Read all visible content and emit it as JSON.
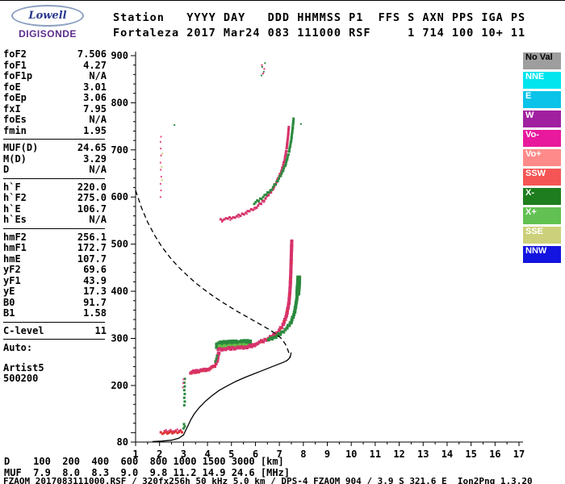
{
  "logo": {
    "line1": "Lowell",
    "line2": "DIGISONDE"
  },
  "header": {
    "line1": "Station   YYYY DAY   DDD HHMMSS P1  FFS S AXN PPS IGA PS",
    "line2": "Fortaleza 2017 Mar24 083 111000 RSF     1 714 100 10+ 11"
  },
  "parameters": {
    "groups": [
      {
        "rows": [
          [
            "foF2",
            "7.506"
          ],
          [
            "foF1",
            "4.27"
          ],
          [
            "foF1p",
            "N/A"
          ],
          [
            "foE",
            "3.01"
          ],
          [
            "foEp",
            "3.06"
          ],
          [
            "fxI",
            "7.95"
          ],
          [
            "foEs",
            "N/A"
          ],
          [
            "fmin",
            "1.95"
          ]
        ]
      },
      {
        "rows": [
          [
            "MUF(D)",
            "24.65"
          ],
          [
            "M(D)",
            "3.29"
          ],
          [
            "D",
            "N/A"
          ]
        ]
      },
      {
        "rows": [
          [
            "h`F",
            "220.0"
          ],
          [
            "h`F2",
            "275.0"
          ],
          [
            "h`E",
            "106.7"
          ],
          [
            "h`Es",
            "N/A"
          ]
        ]
      },
      {
        "rows": [
          [
            "hmF2",
            "256.1"
          ],
          [
            "hmF1",
            "172.7"
          ],
          [
            "hmE",
            "107.7"
          ],
          [
            "yF2",
            "69.6"
          ],
          [
            "yF1",
            "43.9"
          ],
          [
            "yE",
            "17.3"
          ],
          [
            "B0",
            "91.7"
          ],
          [
            "B1",
            "1.58"
          ]
        ]
      },
      {
        "rows": [
          [
            "C-level",
            "11"
          ]
        ]
      }
    ],
    "footer": [
      "Auto:",
      "Artist5",
      "500200"
    ]
  },
  "legend": {
    "items": [
      {
        "label": "No Val",
        "color": "#9e9e9e",
        "text_color": "#000000"
      },
      {
        "label": "NNE",
        "color": "#00e5ee"
      },
      {
        "label": "E",
        "color": "#0bc3e8"
      },
      {
        "label": "W",
        "color": "#a020a0"
      },
      {
        "label": "Vo-",
        "color": "#e8199c"
      },
      {
        "label": "Vo+",
        "color": "#ff8a8a"
      },
      {
        "label": "SSW",
        "color": "#f55555"
      },
      {
        "label": "X-",
        "color": "#1e7d1e"
      },
      {
        "label": "X+",
        "color": "#62c152"
      },
      {
        "label": "SSE",
        "color": "#cdd07a"
      },
      {
        "label": "NNW",
        "color": "#1414e0"
      }
    ]
  },
  "muf_table": {
    "line1": "D    100  200  400  600  800 1000 1500 3000 [km]",
    "line2": "MUF  7.9  8.0  8.3  9.0  9.8 11.2 14.9 24.6 [MHz]"
  },
  "status_line": "FZAOM_2017083111000.RSF / 320fx256h 50 kHz 5.0 km / DPS-4 FZAOM 904 / 3.9 S 321.6 E  Ion2Png 1.3.20",
  "chart_data": {
    "type": "scatter",
    "title": "",
    "xlabel": "",
    "ylabel": "",
    "xlim": [
      1,
      17
    ],
    "ylim": [
      80,
      900
    ],
    "x_ticks": [
      1,
      2,
      3,
      4,
      5,
      6,
      7,
      8,
      9,
      10,
      11,
      12,
      13,
      14,
      15,
      16,
      17
    ],
    "y_ticks": [
      80,
      200,
      300,
      400,
      500,
      600,
      700,
      800,
      900
    ],
    "grid": false,
    "legend_position": "right",
    "series": [
      {
        "name": "e-trace-red",
        "color": "#e03131",
        "size": 3,
        "band": true,
        "points": [
          [
            2.05,
            99
          ],
          [
            2.4,
            100
          ],
          [
            2.75,
            101
          ],
          [
            3.0,
            103
          ]
        ]
      },
      {
        "name": "e-trace-pink",
        "color": "#d6336c",
        "size": 2,
        "band": true,
        "points": [
          [
            2.2,
            104
          ],
          [
            2.6,
            105
          ],
          [
            2.95,
            106
          ]
        ]
      },
      {
        "name": "e-trace-green-tip",
        "color": "#2b8a3e",
        "size": 3,
        "band": false,
        "points": [
          [
            3.0,
            109
          ],
          [
            3.05,
            113
          ],
          [
            3.02,
            118
          ]
        ]
      },
      {
        "name": "es-green-column",
        "color": "#2b8a3e",
        "size": 3,
        "band": false,
        "points": [
          [
            3.03,
            158
          ],
          [
            3.05,
            166
          ],
          [
            3.03,
            174
          ],
          [
            3.05,
            182
          ],
          [
            3.03,
            190
          ],
          [
            3.05,
            198
          ],
          [
            3.03,
            206
          ],
          [
            3.05,
            214
          ]
        ]
      },
      {
        "name": "es-pink-dots",
        "color": "#e64980",
        "size": 2,
        "band": false,
        "points": [
          [
            2.97,
            196
          ],
          [
            2.99,
            205
          ],
          [
            3.0,
            213
          ]
        ]
      },
      {
        "name": "f1-trace-pink",
        "color": "#d6336c",
        "size": 4,
        "band": true,
        "points": [
          [
            3.3,
            228
          ],
          [
            3.55,
            230
          ],
          [
            3.8,
            232
          ],
          [
            4.05,
            235
          ],
          [
            4.25,
            239
          ],
          [
            4.35,
            246
          ],
          [
            4.42,
            256
          ],
          [
            4.46,
            266
          ],
          [
            4.5,
            274
          ]
        ]
      },
      {
        "name": "f1-trace-red-speckle",
        "color": "#e03131",
        "size": 2,
        "band": false,
        "points": [
          [
            3.35,
            225
          ],
          [
            3.5,
            227
          ],
          [
            3.65,
            228
          ],
          [
            3.8,
            230
          ],
          [
            4.0,
            232
          ],
          [
            4.15,
            236
          ],
          [
            4.3,
            241
          ]
        ]
      },
      {
        "name": "f1-green-dots",
        "color": "#2b8a3e",
        "size": 3,
        "band": false,
        "points": [
          [
            4.33,
            251
          ],
          [
            4.37,
            257
          ],
          [
            4.4,
            263
          ]
        ]
      },
      {
        "name": "f-band-green",
        "color": "#2b8a3e",
        "size": 8,
        "band": true,
        "points": [
          [
            4.45,
            286
          ],
          [
            4.75,
            288
          ],
          [
            5.05,
            289
          ],
          [
            5.35,
            289
          ],
          [
            5.6,
            290
          ],
          [
            5.78,
            291
          ]
        ]
      },
      {
        "name": "f-band-green-light",
        "color": "#69bd45",
        "size": 4,
        "band": true,
        "points": [
          [
            4.5,
            282
          ],
          [
            4.85,
            283
          ],
          [
            5.2,
            284
          ],
          [
            5.5,
            285
          ],
          [
            5.7,
            286
          ]
        ]
      },
      {
        "name": "f-band-pink",
        "color": "#d6336c",
        "size": 4,
        "band": true,
        "points": [
          [
            4.45,
            276
          ],
          [
            4.75,
            278
          ],
          [
            5.05,
            279
          ],
          [
            5.35,
            280
          ],
          [
            5.65,
            282
          ],
          [
            5.9,
            285
          ],
          [
            6.1,
            289
          ]
        ]
      },
      {
        "name": "f2-rise-pink",
        "color": "#d6336c",
        "size": 4,
        "band": true,
        "points": [
          [
            6.1,
            291
          ],
          [
            6.4,
            296
          ],
          [
            6.7,
            304
          ],
          [
            6.95,
            314
          ],
          [
            7.15,
            328
          ],
          [
            7.3,
            349
          ],
          [
            7.4,
            376
          ],
          [
            7.45,
            407
          ],
          [
            7.48,
            442
          ],
          [
            7.5,
            478
          ],
          [
            7.52,
            508
          ]
        ]
      },
      {
        "name": "f2-rise-red-speckle",
        "color": "#e03131",
        "size": 2,
        "band": false,
        "points": [
          [
            6.25,
            293
          ],
          [
            6.55,
            299
          ],
          [
            6.85,
            309
          ],
          [
            7.05,
            321
          ],
          [
            7.2,
            337
          ],
          [
            7.32,
            358
          ],
          [
            7.42,
            392
          ],
          [
            7.46,
            425
          ],
          [
            7.49,
            460
          ]
        ]
      },
      {
        "name": "f2-rise-green",
        "color": "#2b8a3e",
        "size": 4,
        "band": true,
        "points": [
          [
            6.55,
            297
          ],
          [
            6.85,
            304
          ],
          [
            7.1,
            312
          ],
          [
            7.32,
            322
          ],
          [
            7.5,
            336
          ],
          [
            7.63,
            354
          ],
          [
            7.71,
            377
          ],
          [
            7.77,
            402
          ],
          [
            7.8,
            424
          ],
          [
            7.82,
            433
          ]
        ]
      },
      {
        "name": "f2-green-blob",
        "color": "#2b8a3e",
        "size": 6,
        "band": true,
        "points": [
          [
            7.77,
            398
          ],
          [
            7.8,
            415
          ],
          [
            7.81,
            430
          ]
        ]
      },
      {
        "name": "second-hop-pink",
        "color": "#d6336c",
        "size": 3,
        "band": true,
        "points": [
          [
            4.55,
            551
          ],
          [
            4.85,
            554
          ],
          [
            5.15,
            558
          ],
          [
            5.45,
            563
          ],
          [
            5.75,
            570
          ],
          [
            6.05,
            579
          ],
          [
            6.3,
            590
          ],
          [
            6.55,
            604
          ],
          [
            6.75,
            619
          ],
          [
            6.95,
            638
          ],
          [
            7.1,
            657
          ],
          [
            7.22,
            679
          ],
          [
            7.3,
            702
          ],
          [
            7.36,
            728
          ],
          [
            7.4,
            752
          ]
        ]
      },
      {
        "name": "second-hop-pink-speckle",
        "color": "#e64980",
        "size": 2,
        "band": false,
        "points": [
          [
            4.6,
            547
          ],
          [
            4.95,
            551
          ],
          [
            5.3,
            557
          ],
          [
            5.65,
            564
          ],
          [
            6.0,
            574
          ],
          [
            6.35,
            589
          ]
        ]
      },
      {
        "name": "second-hop-green",
        "color": "#2b8a3e",
        "size": 3,
        "band": true,
        "points": [
          [
            5.95,
            587
          ],
          [
            6.2,
            595
          ],
          [
            6.45,
            605
          ],
          [
            6.68,
            617
          ],
          [
            6.9,
            632
          ],
          [
            7.1,
            650
          ],
          [
            7.27,
            671
          ],
          [
            7.4,
            695
          ],
          [
            7.5,
            722
          ],
          [
            7.56,
            748
          ],
          [
            7.6,
            768
          ]
        ]
      },
      {
        "name": "interference-column-pink",
        "color": "#e64980",
        "size": 2,
        "band": false,
        "points": [
          [
            2.04,
            600
          ],
          [
            2.06,
            614
          ],
          [
            2.04,
            628
          ],
          [
            2.07,
            643
          ],
          [
            2.05,
            658
          ],
          [
            2.04,
            673
          ],
          [
            2.06,
            688
          ],
          [
            2.05,
            703
          ],
          [
            2.04,
            717
          ],
          [
            2.06,
            728
          ]
        ]
      },
      {
        "name": "interference-column-yellow",
        "color": "#cdd07a",
        "size": 2,
        "band": false,
        "points": [
          [
            2.1,
            636
          ],
          [
            2.09,
            664
          ],
          [
            2.11,
            692
          ]
        ]
      },
      {
        "name": "stray-green-dots",
        "color": "#2b8a3e",
        "size": 2,
        "band": false,
        "points": [
          [
            2.62,
            753
          ],
          [
            7.9,
            755
          ],
          [
            6.25,
            858
          ],
          [
            6.35,
            866
          ],
          [
            6.28,
            876
          ],
          [
            6.4,
            884
          ]
        ]
      },
      {
        "name": "stray-pink-dots",
        "color": "#d6336c",
        "size": 2,
        "band": false,
        "points": [
          [
            6.32,
            862
          ],
          [
            6.27,
            880
          ],
          [
            6.37,
            872
          ]
        ]
      }
    ],
    "lines": [
      {
        "name": "true-height-profile",
        "style": "solid",
        "color": "#000000",
        "points": [
          [
            1.7,
            81
          ],
          [
            2.1,
            82
          ],
          [
            2.5,
            84
          ],
          [
            2.8,
            88
          ],
          [
            3.0,
            95
          ],
          [
            3.08,
            104
          ],
          [
            3.18,
            114
          ],
          [
            3.3,
            127
          ],
          [
            3.45,
            140
          ],
          [
            3.65,
            153
          ],
          [
            3.9,
            166
          ],
          [
            4.2,
            179
          ],
          [
            4.5,
            190
          ],
          [
            4.85,
            200
          ],
          [
            5.2,
            209
          ],
          [
            5.55,
            217
          ],
          [
            5.9,
            224
          ],
          [
            6.25,
            231
          ],
          [
            6.6,
            238
          ],
          [
            6.9,
            244
          ],
          [
            7.15,
            249
          ],
          [
            7.32,
            253
          ],
          [
            7.42,
            258
          ],
          [
            7.47,
            264
          ],
          [
            7.49,
            270
          ]
        ]
      },
      {
        "name": "model-curve",
        "style": "dashed",
        "color": "#000000",
        "points": [
          [
            1.0,
            614
          ],
          [
            1.25,
            577
          ],
          [
            1.5,
            547
          ],
          [
            1.8,
            518
          ],
          [
            2.1,
            494
          ],
          [
            2.45,
            471
          ],
          [
            2.8,
            451
          ],
          [
            3.15,
            434
          ],
          [
            3.5,
            418
          ],
          [
            3.85,
            404
          ],
          [
            4.2,
            391
          ],
          [
            4.55,
            379
          ],
          [
            4.9,
            368
          ],
          [
            5.25,
            357
          ],
          [
            5.6,
            347
          ],
          [
            5.95,
            337
          ],
          [
            6.3,
            327
          ],
          [
            6.6,
            318
          ],
          [
            6.9,
            308
          ],
          [
            7.1,
            299
          ],
          [
            7.25,
            288
          ],
          [
            7.35,
            276
          ],
          [
            7.42,
            266
          ],
          [
            7.46,
            259
          ]
        ]
      }
    ]
  }
}
